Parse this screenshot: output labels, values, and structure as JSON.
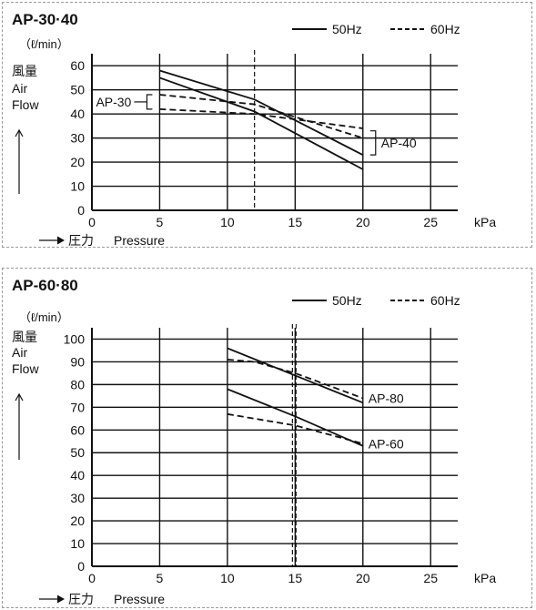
{
  "chart_data": [
    {
      "type": "line",
      "title": "AP-30·40",
      "ylabel_unit": "（ℓ/min）",
      "ylabel_jp": "風量",
      "ylabel_en": [
        "Air",
        "Flow"
      ],
      "xlabel_jp": "圧力",
      "xlabel_en": "Pressure",
      "xunit": "kPa",
      "xlim": [
        0,
        27
      ],
      "ylim": [
        0,
        65
      ],
      "xticks": [
        "0",
        "5",
        "10",
        "15",
        "20",
        "25"
      ],
      "xtick_values": [
        0,
        5,
        10,
        15,
        20,
        25
      ],
      "yticks": [
        "0",
        "10",
        "20",
        "30",
        "40",
        "50",
        "60"
      ],
      "ytick_values": [
        0,
        10,
        20,
        30,
        40,
        50,
        60
      ],
      "legend": [
        {
          "label": "50Hz",
          "style": "solid"
        },
        {
          "label": "60Hz",
          "style": "dashed"
        }
      ],
      "rated_pressure": 12,
      "grid": true,
      "series": [
        {
          "name": "AP-30",
          "hz": "50Hz",
          "style": "solid",
          "x": [
            5,
            12,
            20
          ],
          "y": [
            55,
            41,
            17
          ]
        },
        {
          "name": "AP-30",
          "hz": "60Hz",
          "style": "dashed",
          "x": [
            5,
            12,
            20
          ],
          "y": [
            42,
            40,
            34
          ]
        },
        {
          "name": "AP-40",
          "hz": "50Hz",
          "style": "solid",
          "x": [
            5,
            12,
            20
          ],
          "y": [
            58,
            46,
            23
          ]
        },
        {
          "name": "AP-40",
          "hz": "60Hz",
          "style": "dashed",
          "x": [
            5,
            12,
            20
          ],
          "y": [
            48,
            44,
            30
          ]
        }
      ],
      "annotations": [
        {
          "text": "AP-30",
          "side": "left"
        },
        {
          "text": "AP-40",
          "side": "right"
        }
      ]
    },
    {
      "type": "line",
      "title": "AP-60·80",
      "ylabel_unit": "（ℓ/min）",
      "ylabel_jp": "風量",
      "ylabel_en": [
        "Air",
        "Flow"
      ],
      "xlabel_jp": "圧力",
      "xlabel_en": "Pressure",
      "xunit": "kPa",
      "xlim": [
        0,
        27
      ],
      "ylim": [
        0,
        105
      ],
      "xticks": [
        "0",
        "5",
        "10",
        "15",
        "20",
        "25"
      ],
      "xtick_values": [
        0,
        5,
        10,
        15,
        20,
        25
      ],
      "yticks": [
        "0",
        "10",
        "20",
        "30",
        "40",
        "50",
        "60",
        "70",
        "80",
        "90",
        "100"
      ],
      "ytick_values": [
        0,
        10,
        20,
        30,
        40,
        50,
        60,
        70,
        80,
        90,
        100
      ],
      "legend": [
        {
          "label": "50Hz",
          "style": "solid"
        },
        {
          "label": "60Hz",
          "style": "dashed"
        }
      ],
      "rated_pressure": 14.8,
      "grid": true,
      "series": [
        {
          "name": "AP-80",
          "hz": "50Hz",
          "style": "solid",
          "x": [
            10,
            15,
            20
          ],
          "y": [
            96,
            84,
            72
          ]
        },
        {
          "name": "AP-80",
          "hz": "60Hz",
          "style": "dashed",
          "x": [
            10,
            12,
            15,
            20
          ],
          "y": [
            91,
            90,
            85,
            74
          ]
        },
        {
          "name": "AP-60",
          "hz": "50Hz",
          "style": "solid",
          "x": [
            10,
            15,
            20
          ],
          "y": [
            78,
            66,
            53
          ]
        },
        {
          "name": "AP-60",
          "hz": "60Hz",
          "style": "dashed",
          "x": [
            10,
            12,
            15,
            20
          ],
          "y": [
            67,
            65,
            62,
            54
          ]
        }
      ],
      "annotations": [
        {
          "text": "AP-80",
          "side": "right",
          "series_index": 1
        },
        {
          "text": "AP-60",
          "side": "right",
          "series_index": 3
        }
      ]
    }
  ]
}
